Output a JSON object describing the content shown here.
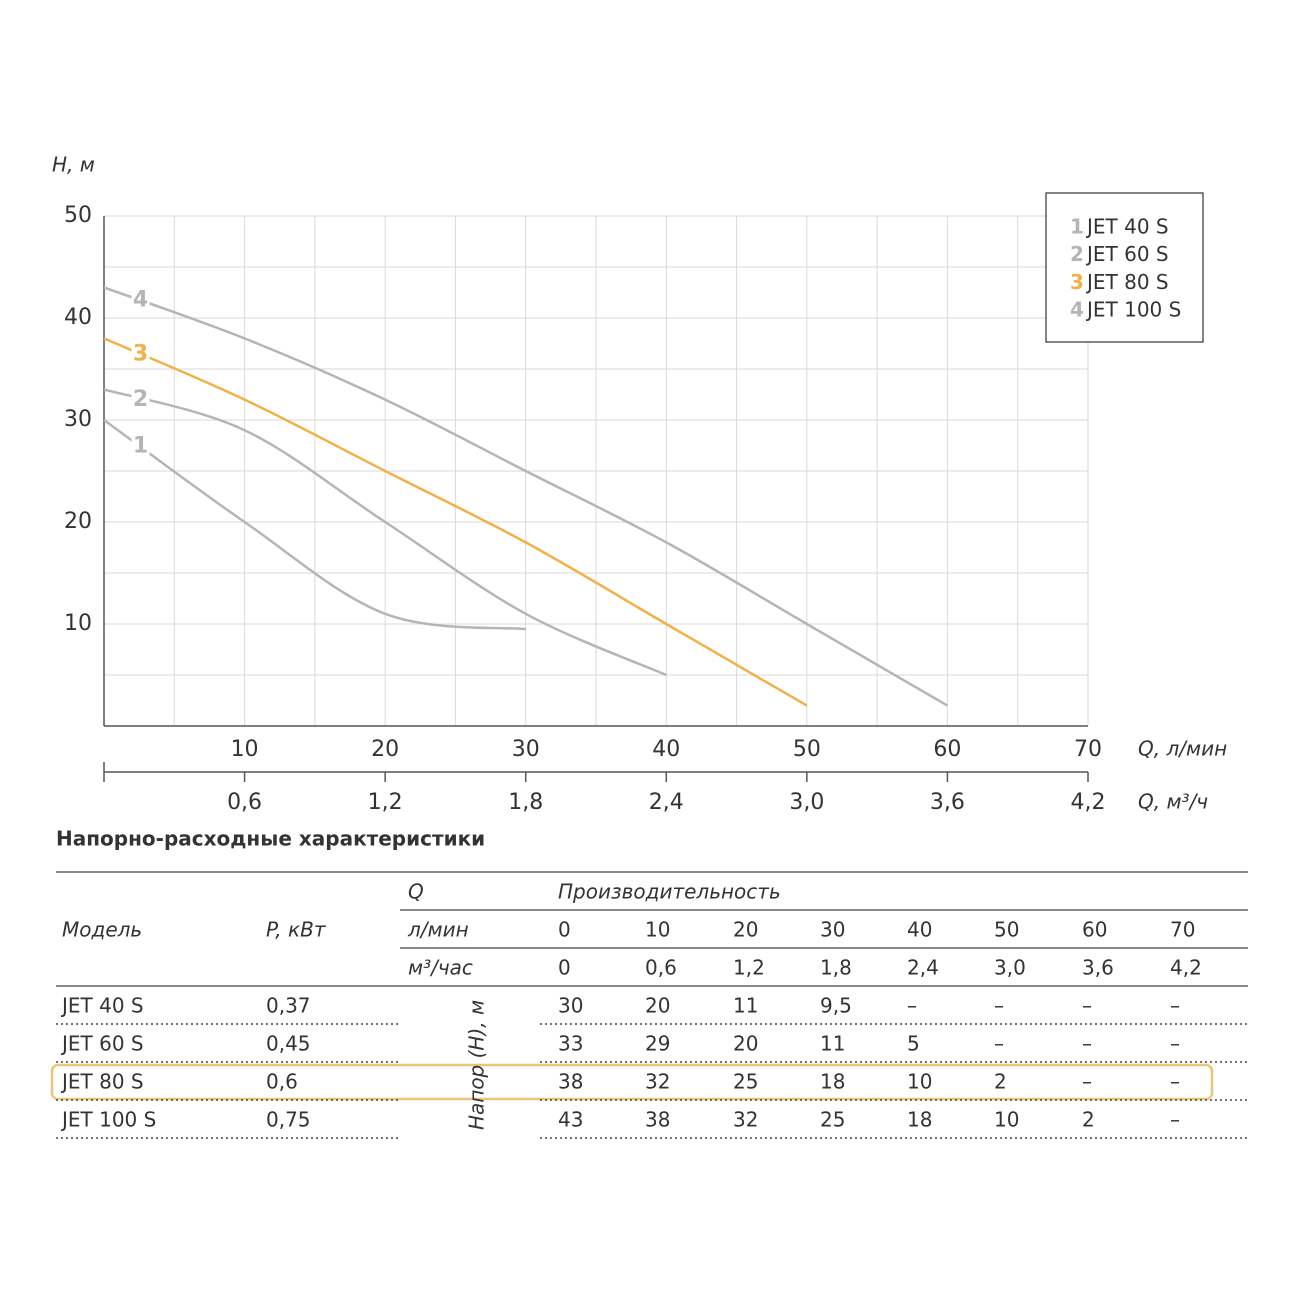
{
  "chart_data": {
    "type": "line",
    "y_title": "H, м",
    "x_title": "Q, л/мин",
    "x2_title": "Q, м³/ч",
    "x": [
      0,
      10,
      20,
      30,
      40,
      50,
      60,
      70
    ],
    "series": [
      {
        "name": "JET 40 S",
        "label": "1",
        "color": "#b5b5b5",
        "values": [
          30,
          20,
          11,
          9.5,
          null,
          null,
          null,
          null
        ]
      },
      {
        "name": "JET 60 S",
        "label": "2",
        "color": "#b5b5b5",
        "values": [
          33,
          29,
          20,
          11,
          5,
          null,
          null,
          null
        ]
      },
      {
        "name": "JET 80 S",
        "label": "3",
        "color": "#f0b04a",
        "values": [
          38,
          32,
          25,
          18,
          10,
          2,
          null,
          null
        ]
      },
      {
        "name": "JET 100 S",
        "label": "4",
        "color": "#b5b5b5",
        "values": [
          43,
          38,
          32,
          25,
          18,
          10,
          2,
          null
        ]
      }
    ],
    "xlim": [
      0,
      70
    ],
    "xticks": [
      10,
      20,
      30,
      40,
      50,
      60,
      70
    ],
    "minor_xticks": [
      5,
      15,
      25,
      35,
      45,
      55,
      65
    ],
    "ylim": [
      0,
      50
    ],
    "yticks": [
      10,
      20,
      30,
      40,
      50
    ],
    "minor_yticks": [
      5,
      15,
      25,
      35,
      45
    ],
    "x2lim": [
      0,
      4.2
    ],
    "x2ticks": [
      {
        "value": 0.6,
        "label": "0,6"
      },
      {
        "value": 1.2,
        "label": "1,2"
      },
      {
        "value": 1.8,
        "label": "1,8"
      },
      {
        "value": 2.4,
        "label": "2,4"
      },
      {
        "value": 3.0,
        "label": "3,0"
      },
      {
        "value": 3.6,
        "label": "3,6"
      },
      {
        "value": 4.2,
        "label": "4,2"
      }
    ],
    "grid": true,
    "legend": "top-right"
  },
  "table": {
    "title": "Напорно-расходные характеристики",
    "header": {
      "model": "Модель",
      "power": "P, кВт",
      "q": "Q",
      "performance": "Производительность",
      "lmin": "л/мин",
      "m3h": "м³/час",
      "lmin_values": [
        "0",
        "10",
        "20",
        "30",
        "40",
        "50",
        "60",
        "70"
      ],
      "m3h_values": [
        "0",
        "0,6",
        "1,2",
        "1,8",
        "2,4",
        "3,0",
        "3,6",
        "4,2"
      ]
    },
    "head_label": "Напор (Н), м",
    "rows": [
      [
        "JET 40 S",
        "0,37",
        "30",
        "20",
        "11",
        "9,5",
        "–",
        "–",
        "–",
        "–"
      ],
      [
        "JET 60 S",
        "0,45",
        "33",
        "29",
        "20",
        "11",
        "5",
        "–",
        "–",
        "–"
      ],
      [
        "JET 80 S",
        "0,6",
        "38",
        "32",
        "25",
        "18",
        "10",
        "2",
        "–",
        "–"
      ],
      [
        "JET 100 S",
        "0,75",
        "43",
        "38",
        "32",
        "25",
        "18",
        "10",
        "2",
        "–"
      ]
    ]
  }
}
